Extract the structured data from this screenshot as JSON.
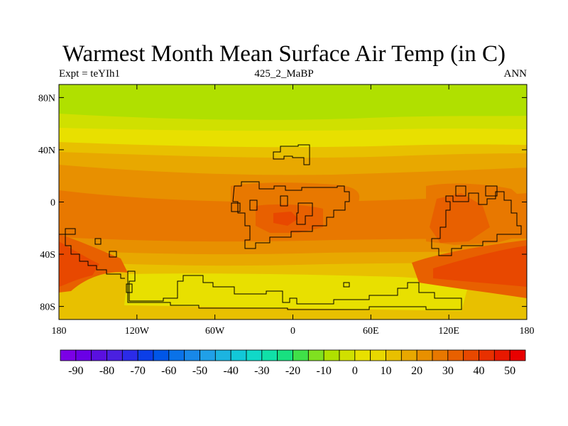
{
  "title": "Warmest Month Mean Surface Air Temp (in C)",
  "subtitle_left": "Expt = teYIh1",
  "subtitle_center": "425_2_MaBP",
  "subtitle_right": "ANN",
  "map": {
    "lon_range": [
      -180,
      180
    ],
    "lat_range": [
      -90,
      90
    ],
    "lat_ticks": [
      {
        "value": 80,
        "label": "80N"
      },
      {
        "value": 40,
        "label": "40N"
      },
      {
        "value": 0,
        "label": "0"
      },
      {
        "value": -40,
        "label": "40S"
      },
      {
        "value": -80,
        "label": "80S"
      }
    ],
    "lon_ticks": [
      {
        "value": -180,
        "label": "180"
      },
      {
        "value": -120,
        "label": "120W"
      },
      {
        "value": -60,
        "label": "60W"
      },
      {
        "value": 0,
        "label": "0"
      },
      {
        "value": 60,
        "label": "60E"
      },
      {
        "value": 120,
        "label": "120E"
      },
      {
        "value": 180,
        "label": "180"
      }
    ]
  },
  "colorbar": {
    "colors": [
      "#7b00e6",
      "#6a00e6",
      "#5a10e0",
      "#4a20e0",
      "#2b2be8",
      "#0b3ee8",
      "#0056e8",
      "#0a72e8",
      "#1888e8",
      "#20a0e8",
      "#1cb4e0",
      "#12c8d8",
      "#10d8c8",
      "#10e0a8",
      "#18e080",
      "#40e048",
      "#80e020",
      "#b0e000",
      "#d0e000",
      "#e8e000",
      "#e8d800",
      "#e8c000",
      "#e8a800",
      "#e89000",
      "#e87800",
      "#e86000",
      "#e84800",
      "#e83000",
      "#e81800",
      "#e80000"
    ],
    "labels": [
      "-90",
      "-80",
      "-70",
      "-60",
      "-50",
      "-40",
      "-30",
      "-20",
      "-10",
      "0",
      "10",
      "20",
      "30",
      "40",
      "50"
    ]
  },
  "colors": {
    "c_bright_green": "#b0e000",
    "c_yellow_green": "#d0e000",
    "c_yellow": "#e8e000",
    "c_light_orange": "#e8c000",
    "c_orange": "#e8a800",
    "c_dark_orange": "#e89000",
    "c_red_orange": "#e87800",
    "c_red": "#e86000",
    "c_deep_red": "#e84800"
  }
}
